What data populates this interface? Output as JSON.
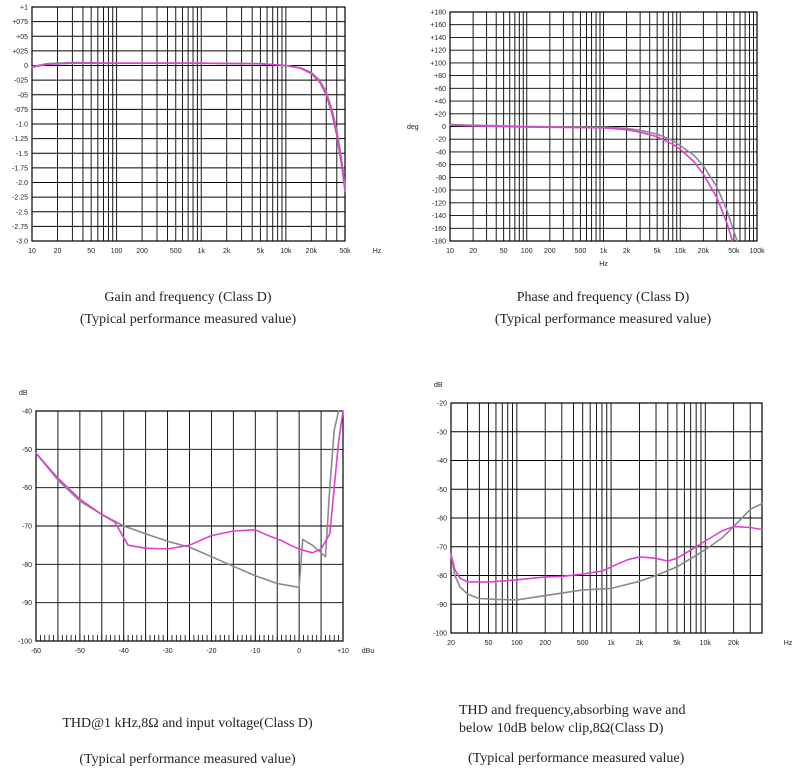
{
  "colors": {
    "gray": "#8a8a8a",
    "magenta": "#e040d0",
    "grid": "#000000"
  },
  "chart_data": [
    {
      "id": "gain",
      "type": "line",
      "xscale": "log",
      "xlim": [
        10,
        50000
      ],
      "ylim": [
        -3.0,
        1.0
      ],
      "unit_x": "Hz",
      "unit_y": "",
      "x_labels": [
        {
          "v": 10,
          "t": "10"
        },
        {
          "v": 20,
          "t": "20"
        },
        {
          "v": 50,
          "t": "50"
        },
        {
          "v": 100,
          "t": "100"
        },
        {
          "v": 200,
          "t": "200"
        },
        {
          "v": 500,
          "t": "500"
        },
        {
          "v": 1000,
          "t": "1k"
        },
        {
          "v": 2000,
          "t": "2k"
        },
        {
          "v": 5000,
          "t": "5k"
        },
        {
          "v": 10000,
          "t": "10k"
        },
        {
          "v": 20000,
          "t": "20k"
        },
        {
          "v": 50000,
          "t": "50k"
        }
      ],
      "y_labels": [
        {
          "v": 1.0,
          "t": "+1"
        },
        {
          "v": 0.75,
          "t": "+075"
        },
        {
          "v": 0.5,
          "t": "+05"
        },
        {
          "v": 0.25,
          "t": "+025"
        },
        {
          "v": 0,
          "t": "0"
        },
        {
          "v": -0.25,
          "t": "-025"
        },
        {
          "v": -0.5,
          "t": "-05"
        },
        {
          "v": -0.75,
          "t": "-075"
        },
        {
          "v": -1.0,
          "t": "-1.0"
        },
        {
          "v": -1.25,
          "t": "-1.25"
        },
        {
          "v": -1.5,
          "t": "-1.5"
        },
        {
          "v": -1.75,
          "t": "-1.75"
        },
        {
          "v": -2.0,
          "t": "-2.0"
        },
        {
          "v": -2.25,
          "t": "-2.25"
        },
        {
          "v": -2.5,
          "t": "-2.5"
        },
        {
          "v": -2.75,
          "t": "-2.75"
        },
        {
          "v": -3.0,
          "t": "-3.0"
        }
      ],
      "series": [
        {
          "name": "gray",
          "points": [
            [
              10,
              -0.02
            ],
            [
              15,
              0.03
            ],
            [
              30,
              0.05
            ],
            [
              100,
              0.04
            ],
            [
              1000,
              0.04
            ],
            [
              5000,
              0.03
            ],
            [
              10000,
              0.0
            ],
            [
              15000,
              -0.04
            ],
            [
              20000,
              -0.12
            ],
            [
              25000,
              -0.25
            ],
            [
              30000,
              -0.45
            ],
            [
              35000,
              -0.75
            ],
            [
              40000,
              -1.1
            ],
            [
              45000,
              -1.55
            ],
            [
              50000,
              -2.05
            ]
          ]
        },
        {
          "name": "magenta",
          "points": [
            [
              10,
              -0.03
            ],
            [
              15,
              0.02
            ],
            [
              30,
              0.04
            ],
            [
              100,
              0.04
            ],
            [
              1000,
              0.04
            ],
            [
              5000,
              0.03
            ],
            [
              10000,
              0.0
            ],
            [
              15000,
              -0.05
            ],
            [
              20000,
              -0.14
            ],
            [
              25000,
              -0.28
            ],
            [
              30000,
              -0.5
            ],
            [
              35000,
              -0.82
            ],
            [
              40000,
              -1.2
            ],
            [
              45000,
              -1.65
            ],
            [
              50000,
              -2.15
            ]
          ]
        }
      ],
      "caption": [
        "Gain and frequency (Class D)",
        "(Typical performance measured value)"
      ]
    },
    {
      "id": "phase",
      "type": "line",
      "xscale": "log",
      "xlim": [
        10,
        100000
      ],
      "ylim": [
        -180,
        180
      ],
      "unit_x": "Hz",
      "unit_y": "deg",
      "x_labels": [
        {
          "v": 10,
          "t": "10"
        },
        {
          "v": 20,
          "t": "20"
        },
        {
          "v": 50,
          "t": "50"
        },
        {
          "v": 100,
          "t": "100"
        },
        {
          "v": 200,
          "t": "200"
        },
        {
          "v": 500,
          "t": "500"
        },
        {
          "v": 1000,
          "t": "1k"
        },
        {
          "v": 2000,
          "t": "2k"
        },
        {
          "v": 5000,
          "t": "5k"
        },
        {
          "v": 10000,
          "t": "10k"
        },
        {
          "v": 20000,
          "t": "20k"
        },
        {
          "v": 50000,
          "t": "50k"
        },
        {
          "v": 100000,
          "t": "100k"
        }
      ],
      "y_labels": [
        {
          "v": 180,
          "t": "+180"
        },
        {
          "v": 160,
          "t": "+160"
        },
        {
          "v": 140,
          "t": "+140"
        },
        {
          "v": 120,
          "t": "+120"
        },
        {
          "v": 100,
          "t": "+100"
        },
        {
          "v": 80,
          "t": "+80"
        },
        {
          "v": 60,
          "t": "+60"
        },
        {
          "v": 40,
          "t": "+40"
        },
        {
          "v": 20,
          "t": "+20"
        },
        {
          "v": 0,
          "t": "0"
        },
        {
          "v": -20,
          "t": "-20"
        },
        {
          "v": -40,
          "t": "-40"
        },
        {
          "v": -60,
          "t": "-60"
        },
        {
          "v": -80,
          "t": "-80"
        },
        {
          "v": -100,
          "t": "-100"
        },
        {
          "v": -120,
          "t": "-120"
        },
        {
          "v": -140,
          "t": "-140"
        },
        {
          "v": -160,
          "t": "-160"
        },
        {
          "v": -180,
          "t": "-180"
        }
      ],
      "series": [
        {
          "name": "gray",
          "points": [
            [
              10,
              3
            ],
            [
              20,
              2
            ],
            [
              100,
              0
            ],
            [
              1000,
              -1
            ],
            [
              2000,
              -3
            ],
            [
              3000,
              -6
            ],
            [
              5000,
              -12
            ],
            [
              8000,
              -22
            ],
            [
              10000,
              -30
            ],
            [
              15000,
              -45
            ],
            [
              20000,
              -62
            ],
            [
              30000,
              -95
            ],
            [
              40000,
              -130
            ],
            [
              50000,
              -165
            ],
            [
              55000,
              -180
            ]
          ]
        },
        {
          "name": "magenta",
          "points": [
            [
              10,
              2
            ],
            [
              20,
              1
            ],
            [
              100,
              -1
            ],
            [
              1000,
              -2
            ],
            [
              2000,
              -5
            ],
            [
              3000,
              -9
            ],
            [
              5000,
              -16
            ],
            [
              8000,
              -28
            ],
            [
              10000,
              -36
            ],
            [
              15000,
              -55
            ],
            [
              20000,
              -75
            ],
            [
              30000,
              -112
            ],
            [
              40000,
              -150
            ],
            [
              48000,
              -180
            ]
          ]
        }
      ],
      "caption": [
        "Phase and frequency (Class D)",
        "(Typical performance measured value)"
      ]
    },
    {
      "id": "thd_level",
      "type": "line",
      "xscale": "linear",
      "xlim": [
        -60,
        10
      ],
      "ylim": [
        -100,
        -40
      ],
      "unit_x": "dBu",
      "unit_y": "dB",
      "x_labels": [
        {
          "v": -60,
          "t": "-60"
        },
        {
          "v": -50,
          "t": "-50"
        },
        {
          "v": -40,
          "t": "-40"
        },
        {
          "v": -30,
          "t": "-30"
        },
        {
          "v": -20,
          "t": "-20"
        },
        {
          "v": -10,
          "t": "-10"
        },
        {
          "v": 0,
          "t": "0"
        },
        {
          "v": 10,
          "t": "+10"
        }
      ],
      "y_labels": [
        {
          "v": -40,
          "t": "-40"
        },
        {
          "v": -50,
          "t": "-50"
        },
        {
          "v": -60,
          "t": "-60"
        },
        {
          "v": -70,
          "t": "-70"
        },
        {
          "v": -80,
          "t": "-80"
        },
        {
          "v": -90,
          "t": "-90"
        },
        {
          "v": -100,
          "t": "-100"
        }
      ],
      "series": [
        {
          "name": "gray",
          "points": [
            [
              -60,
              -51
            ],
            [
              -55,
              -58
            ],
            [
              -50,
              -63.5
            ],
            [
              -45,
              -67
            ],
            [
              -40,
              -70
            ],
            [
              -35,
              -72
            ],
            [
              -30,
              -74
            ],
            [
              -25,
              -75.5
            ],
            [
              -20,
              -78
            ],
            [
              -15,
              -80.5
            ],
            [
              -10,
              -83
            ],
            [
              -5,
              -85
            ],
            [
              0,
              -86
            ],
            [
              0.8,
              -73.5
            ],
            [
              3,
              -75
            ],
            [
              6,
              -78
            ],
            [
              7,
              -60
            ],
            [
              8,
              -45
            ],
            [
              9,
              -40
            ]
          ]
        },
        {
          "name": "magenta",
          "points": [
            [
              -60,
              -51
            ],
            [
              -55,
              -57.5
            ],
            [
              -50,
              -63
            ],
            [
              -45,
              -67
            ],
            [
              -42,
              -69
            ],
            [
              -39,
              -75
            ],
            [
              -35,
              -75.8
            ],
            [
              -30,
              -76
            ],
            [
              -25,
              -75
            ],
            [
              -20,
              -72.5
            ],
            [
              -15,
              -71.3
            ],
            [
              -10,
              -71
            ],
            [
              -7,
              -72.5
            ],
            [
              -4,
              -73.8
            ],
            [
              -2,
              -75
            ],
            [
              0,
              -76
            ],
            [
              3,
              -77
            ],
            [
              5,
              -76
            ],
            [
              7,
              -72
            ],
            [
              8,
              -60
            ],
            [
              9,
              -48
            ],
            [
              10,
              -40
            ]
          ]
        }
      ],
      "caption": [
        "THD@1 kHz,8Ω and input voltage(Class D)",
        "(Typical performance measured value)"
      ]
    },
    {
      "id": "thd_freq",
      "type": "line",
      "xscale": "log",
      "xlim": [
        20,
        40000
      ],
      "ylim": [
        -100,
        -20
      ],
      "unit_x": "Hz",
      "unit_y": "dB",
      "x_labels": [
        {
          "v": 20,
          "t": "20"
        },
        {
          "v": 50,
          "t": "50"
        },
        {
          "v": 100,
          "t": "100"
        },
        {
          "v": 200,
          "t": "200"
        },
        {
          "v": 500,
          "t": "500"
        },
        {
          "v": 1000,
          "t": "1k"
        },
        {
          "v": 2000,
          "t": "2k"
        },
        {
          "v": 5000,
          "t": "5k"
        },
        {
          "v": 10000,
          "t": "10k"
        },
        {
          "v": 20000,
          "t": "20k"
        }
      ],
      "y_labels": [
        {
          "v": -20,
          "t": "-20"
        },
        {
          "v": -30,
          "t": "-30"
        },
        {
          "v": -40,
          "t": "-40"
        },
        {
          "v": -50,
          "t": "-50"
        },
        {
          "v": -60,
          "t": "-60"
        },
        {
          "v": -70,
          "t": "-70"
        },
        {
          "v": -80,
          "t": "-80"
        },
        {
          "v": -90,
          "t": "-90"
        },
        {
          "v": -100,
          "t": "-100"
        }
      ],
      "series": [
        {
          "name": "gray",
          "points": [
            [
              20,
              -73
            ],
            [
              22,
              -80
            ],
            [
              25,
              -84
            ],
            [
              30,
              -86.5
            ],
            [
              40,
              -88
            ],
            [
              60,
              -88.3
            ],
            [
              100,
              -88.5
            ],
            [
              200,
              -87
            ],
            [
              500,
              -85
            ],
            [
              1000,
              -84.5
            ],
            [
              2000,
              -82
            ],
            [
              3000,
              -80
            ],
            [
              5000,
              -77
            ],
            [
              8000,
              -73
            ],
            [
              10000,
              -71
            ],
            [
              15000,
              -67
            ],
            [
              20000,
              -63
            ],
            [
              30000,
              -57
            ],
            [
              40000,
              -55
            ]
          ]
        },
        {
          "name": "magenta",
          "points": [
            [
              20,
              -72.5
            ],
            [
              22,
              -78
            ],
            [
              25,
              -81
            ],
            [
              30,
              -82.2
            ],
            [
              50,
              -82.3
            ],
            [
              100,
              -81.5
            ],
            [
              200,
              -80.5
            ],
            [
              300,
              -80.3
            ],
            [
              500,
              -79.5
            ],
            [
              800,
              -78.5
            ],
            [
              1000,
              -77
            ],
            [
              1500,
              -74.5
            ],
            [
              2000,
              -73.5
            ],
            [
              3000,
              -74
            ],
            [
              4000,
              -75
            ],
            [
              5000,
              -74
            ],
            [
              8000,
              -70
            ],
            [
              10000,
              -68
            ],
            [
              15000,
              -64.5
            ],
            [
              20000,
              -63
            ],
            [
              30000,
              -63.3
            ],
            [
              40000,
              -64
            ]
          ]
        }
      ],
      "caption": [
        "THD and frequency,absorbing wave and",
        "below 10dB below clip,8Ω(Class D)",
        "(Typical performance measured value)"
      ]
    }
  ]
}
